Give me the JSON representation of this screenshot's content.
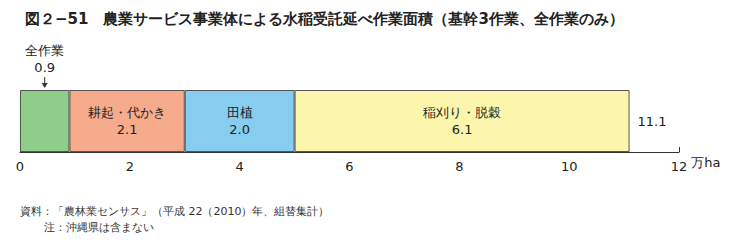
{
  "chart_data": {
    "type": "bar",
    "title": "図２−51　農業サービス事業体による水稲受託延べ作業面積（基幹3作業、全作業のみ）",
    "orientation": "horizontal",
    "stacked": true,
    "data_labels": true,
    "grid": false,
    "categories": [
      null
    ],
    "series": [
      {
        "name": "全作業",
        "color": "#8fcd8a",
        "values": [
          0.9
        ]
      },
      {
        "name": "耕起・代かき",
        "color": "#f6ab8c",
        "values": [
          2.1
        ]
      },
      {
        "name": "田植",
        "color": "#86cdf0",
        "values": [
          2.0
        ],
        "value_labels": [
          "2.0"
        ]
      },
      {
        "name": "稲刈り・脱穀",
        "color": "#fcf6ac",
        "values": [
          6.1
        ]
      }
    ],
    "total": 11.1,
    "xlabel": "万ha",
    "xlim": [
      0,
      12
    ],
    "xticks": [
      0,
      2,
      4,
      6,
      8,
      10,
      12
    ],
    "source": "資料：「農林業センサス」（平成 22（2010）年、組替集計）",
    "note": "注：沖縄県は含まない"
  }
}
